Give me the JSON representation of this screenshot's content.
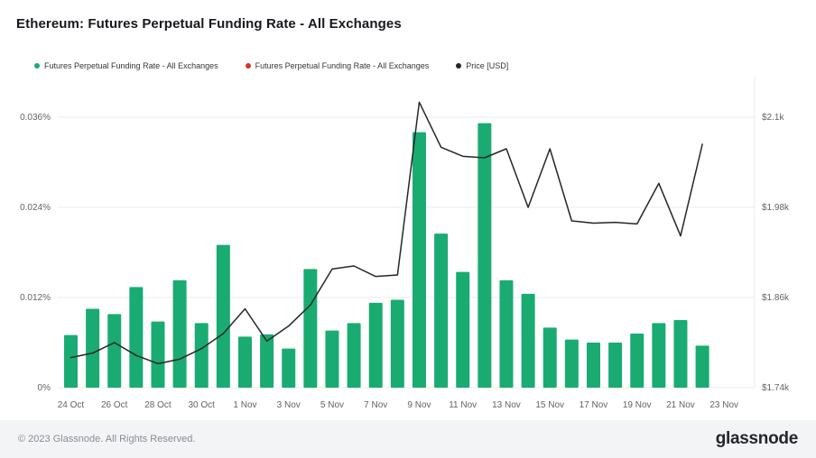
{
  "header": {
    "title": "Ethereum: Futures Perpetual Funding Rate - All Exchanges"
  },
  "legend": [
    {
      "label": "Futures Perpetual Funding Rate - All Exchanges",
      "color": "#1aab72"
    },
    {
      "label": "Futures Perpetual Funding Rate - All Exchanges",
      "color": "#d93025"
    },
    {
      "label": "Price [USD]",
      "color": "#262626"
    }
  ],
  "footer": {
    "copyright": "© 2023 Glassnode. All Rights Reserved.",
    "brand": "glassnode"
  },
  "chart_data": {
    "type": "bar",
    "title": "Ethereum: Futures Perpetual Funding Rate - All Exchanges",
    "grid": true,
    "legend_position": "top",
    "categories": [
      "24 Oct",
      "25 Oct",
      "26 Oct",
      "27 Oct",
      "28 Oct",
      "29 Oct",
      "30 Oct",
      "31 Oct",
      "1 Nov",
      "2 Nov",
      "3 Nov",
      "4 Nov",
      "5 Nov",
      "6 Nov",
      "7 Nov",
      "8 Nov",
      "9 Nov",
      "10 Nov",
      "11 Nov",
      "12 Nov",
      "13 Nov",
      "14 Nov",
      "15 Nov",
      "16 Nov",
      "17 Nov",
      "18 Nov",
      "19 Nov",
      "20 Nov",
      "21 Nov",
      "22 Nov"
    ],
    "series": [
      {
        "name": "Futures Perpetual Funding Rate - All Exchanges",
        "type": "bar",
        "axis": "left",
        "unit": "%",
        "color": "#1aab72",
        "values": [
          0.007,
          0.0105,
          0.0098,
          0.0134,
          0.0088,
          0.0143,
          0.0086,
          0.019,
          0.0068,
          0.0071,
          0.0052,
          0.0158,
          0.0076,
          0.0086,
          0.0113,
          0.0117,
          0.034,
          0.0205,
          0.0154,
          0.0352,
          0.0143,
          0.0125,
          0.008,
          0.0064,
          0.006,
          0.006,
          0.0072,
          0.0086,
          0.009,
          0.0056
        ]
      },
      {
        "name": "Price [USD]",
        "type": "line",
        "axis": "right",
        "unit": "USD",
        "color": "#262626",
        "values": [
          1780,
          1786,
          1800,
          1783,
          1772,
          1778,
          1792,
          1812,
          1845,
          1802,
          1822,
          1850,
          1898,
          1902,
          1888,
          1890,
          2120,
          2060,
          2048,
          2046,
          2058,
          1980,
          2058,
          1962,
          1959,
          1960,
          1958,
          2012,
          1942,
          2064
        ]
      }
    ],
    "left_axis": {
      "tick_labels": [
        "0%",
        "0.012%",
        "0.024%",
        "0.036%"
      ],
      "tick_values": [
        0,
        0.012,
        0.024,
        0.036
      ],
      "range": [
        0,
        0.0414
      ]
    },
    "right_axis": {
      "tick_labels": [
        "$1.74k",
        "$1.86k",
        "$1.98k",
        "$2.1k"
      ],
      "tick_values": [
        1740,
        1860,
        1980,
        2100
      ],
      "range": [
        1740,
        2154
      ]
    },
    "x_axis": {
      "tick_labels": [
        "24 Oct",
        "26 Oct",
        "28 Oct",
        "30 Oct",
        "1 Nov",
        "3 Nov",
        "5 Nov",
        "7 Nov",
        "9 Nov",
        "11 Nov",
        "13 Nov",
        "15 Nov",
        "17 Nov",
        "19 Nov",
        "21 Nov",
        "23 Nov"
      ],
      "tick_positions": [
        0,
        2,
        4,
        6,
        8,
        10,
        12,
        14,
        16,
        18,
        20,
        22,
        24,
        26,
        28,
        30
      ]
    }
  }
}
